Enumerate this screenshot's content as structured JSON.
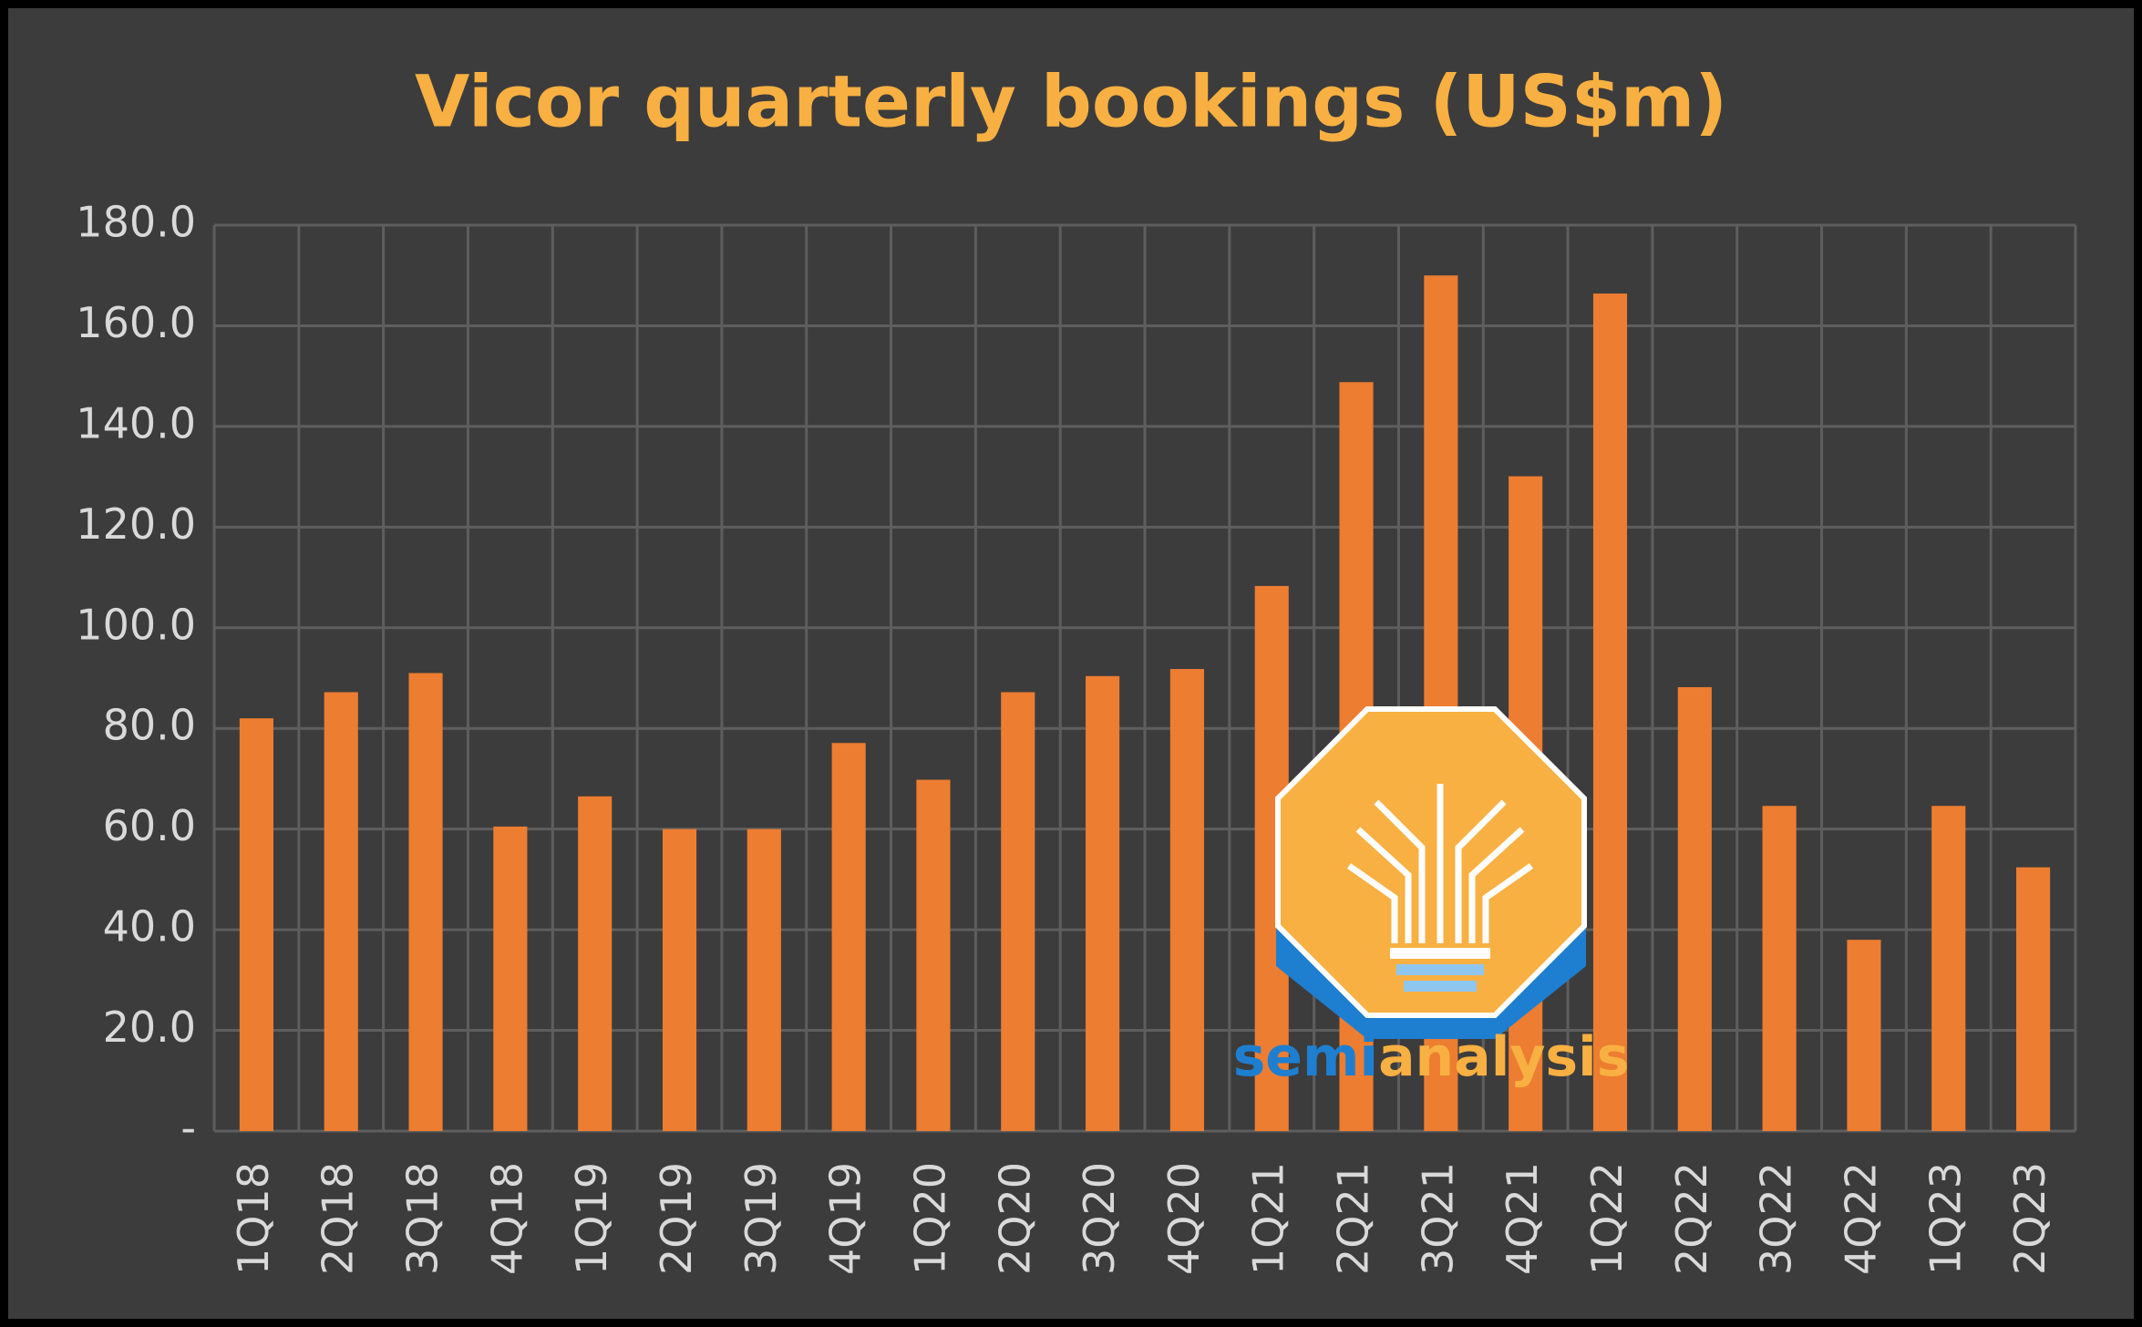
{
  "chart_data": {
    "type": "bar",
    "title": "Vicor quarterly bookings (US$m)",
    "categories": [
      "1Q18",
      "2Q18",
      "3Q18",
      "4Q18",
      "1Q19",
      "2Q19",
      "3Q19",
      "4Q19",
      "1Q20",
      "2Q20",
      "3Q20",
      "4Q20",
      "1Q21",
      "2Q21",
      "3Q21",
      "4Q21",
      "1Q22",
      "2Q22",
      "3Q22",
      "4Q22",
      "1Q23",
      "2Q23"
    ],
    "values": [
      82.0,
      87.2,
      91.0,
      60.5,
      66.5,
      60.0,
      60.0,
      77.1,
      69.8,
      87.2,
      90.4,
      91.8,
      108.3,
      148.8,
      170.0,
      130.1,
      166.4,
      88.2,
      64.6,
      38.0,
      64.6,
      52.4
    ],
    "color": "#ed7d31",
    "ylim": [
      0,
      180
    ],
    "yticks": [
      {
        "value": 0,
        "label": "-"
      },
      {
        "value": 20,
        "label": "20.0"
      },
      {
        "value": 40,
        "label": "40.0"
      },
      {
        "value": 60,
        "label": "60.0"
      },
      {
        "value": 80,
        "label": "80.0"
      },
      {
        "value": 100,
        "label": "100.0"
      },
      {
        "value": 120,
        "label": "120.0"
      },
      {
        "value": 140,
        "label": "140.0"
      },
      {
        "value": 160,
        "label": "160.0"
      },
      {
        "value": 180,
        "label": "180.0"
      }
    ],
    "grid": true,
    "watermark": {
      "first": "semi",
      "second": "analysis"
    }
  }
}
